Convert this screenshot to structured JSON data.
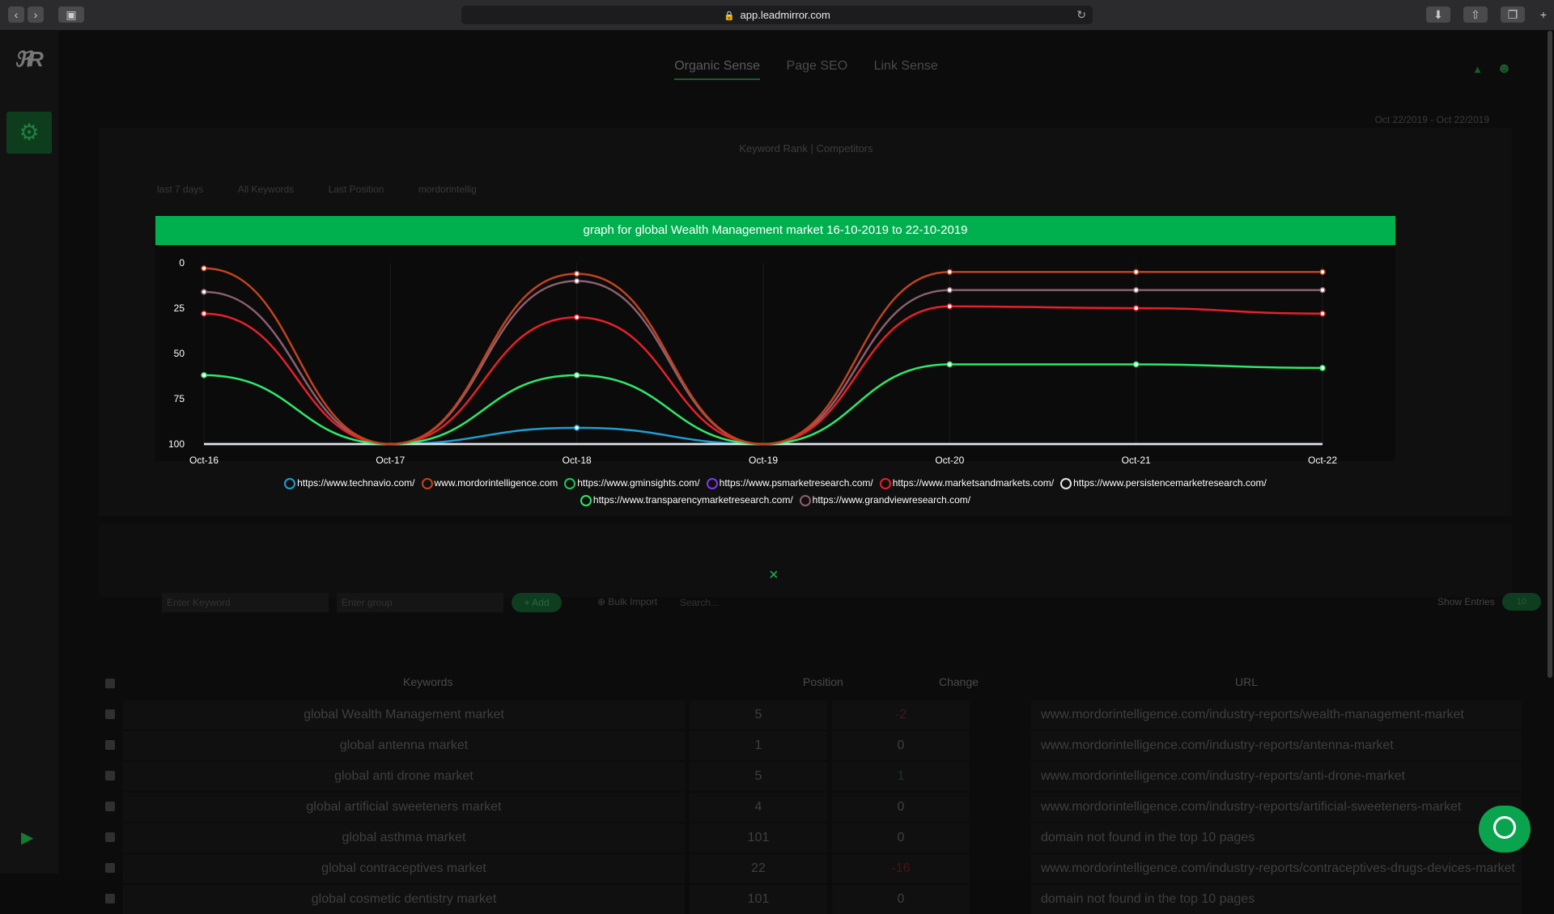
{
  "browser": {
    "url": "app.leadmirror.com"
  },
  "nav": {
    "tabs": [
      "Organic Sense",
      "Page SEO",
      "Link Sense"
    ],
    "date_range": "Oct 22/2019 - Oct 22/2019",
    "subtabs": [
      "Keyword Rank",
      "Competitors"
    ],
    "subtab_separator": "|",
    "filters": [
      "last 7 days",
      "All Keywords",
      "Last Position",
      "mordorintellig"
    ]
  },
  "toolbar": {
    "keyword_placeholder": "Enter Keyword",
    "group_placeholder": "Enter group",
    "add_label": "Add",
    "bulk_import_label": "Bulk Import",
    "search_placeholder": "Search...",
    "show_entries_label": "Show Entries",
    "entries_value": "10"
  },
  "table": {
    "headers": [
      "Keywords",
      "Position",
      "Change",
      "URL"
    ],
    "rows": [
      {
        "keyword": "global Wealth Management market",
        "position": "5",
        "change": "-2",
        "url": "www.mordorintelligence.com/industry-reports/wealth-management-market"
      },
      {
        "keyword": "global antenna market",
        "position": "1",
        "change": "0",
        "url": "www.mordorintelligence.com/industry-reports/antenna-market"
      },
      {
        "keyword": "global anti drone market",
        "position": "5",
        "change": "1",
        "url": "www.mordorintelligence.com/industry-reports/anti-drone-market"
      },
      {
        "keyword": "global artificial sweeteners market",
        "position": "4",
        "change": "0",
        "url": "www.mordorintelligence.com/industry-reports/artificial-sweeteners-market"
      },
      {
        "keyword": "global asthma market",
        "position": "101",
        "change": "0",
        "url": "domain not found in the top 10 pages"
      },
      {
        "keyword": "global contraceptives market",
        "position": "22",
        "change": "-16",
        "url": "www.mordorintelligence.com/industry-reports/contraceptives-drugs-devices-market"
      },
      {
        "keyword": "global cosmetic dentistry market",
        "position": "101",
        "change": "0",
        "url": "domain not found in the top 10 pages"
      }
    ]
  },
  "modal": {
    "title": "graph for global Wealth Management market 16-10-2019 to 22-10-2019",
    "close_label": "×"
  },
  "colors": {
    "accent": "#00b04f"
  },
  "chart_data": {
    "type": "line",
    "title": "graph for global Wealth Management market 16-10-2019 to 22-10-2019",
    "categories": [
      "Oct-16",
      "Oct-17",
      "Oct-18",
      "Oct-19",
      "Oct-20",
      "Oct-21",
      "Oct-22"
    ],
    "ylim": [
      0,
      100
    ],
    "y_reversed": true,
    "y_ticks": [
      0,
      25,
      50,
      75,
      100
    ],
    "legend_position": "bottom",
    "series": [
      {
        "name": "https://www.technavio.com/",
        "color": "#1e9fd0",
        "values": [
          100,
          100,
          91,
          100,
          100,
          100,
          100
        ]
      },
      {
        "name": "www.mordorintelligence.com",
        "color": "#c2431d",
        "values": [
          3,
          100,
          6,
          100,
          5,
          5,
          5
        ]
      },
      {
        "name": "https://www.gminsights.com/",
        "color": "#22c55e",
        "values": [
          100,
          100,
          100,
          100,
          100,
          100,
          100
        ]
      },
      {
        "name": "https://www.psmarketresearch.com/",
        "color": "#7c3aed",
        "values": [
          100,
          100,
          100,
          100,
          100,
          100,
          100
        ]
      },
      {
        "name": "https://www.marketsandmarkets.com/",
        "color": "#e8202a",
        "values": [
          28,
          100,
          30,
          100,
          24,
          25,
          28
        ]
      },
      {
        "name": "https://www.persistencemarketresearch.com/",
        "color": "#e5e5e5",
        "values": [
          100,
          100,
          100,
          100,
          100,
          100,
          100
        ]
      },
      {
        "name": "https://www.transparencymarketresearch.com/",
        "color": "#2ee86a",
        "values": [
          62,
          100,
          62,
          100,
          56,
          56,
          58
        ]
      },
      {
        "name": "https://www.grandviewresearch.com/",
        "color": "#8a6070",
        "values": [
          16,
          100,
          10,
          100,
          15,
          15,
          15
        ]
      }
    ]
  }
}
